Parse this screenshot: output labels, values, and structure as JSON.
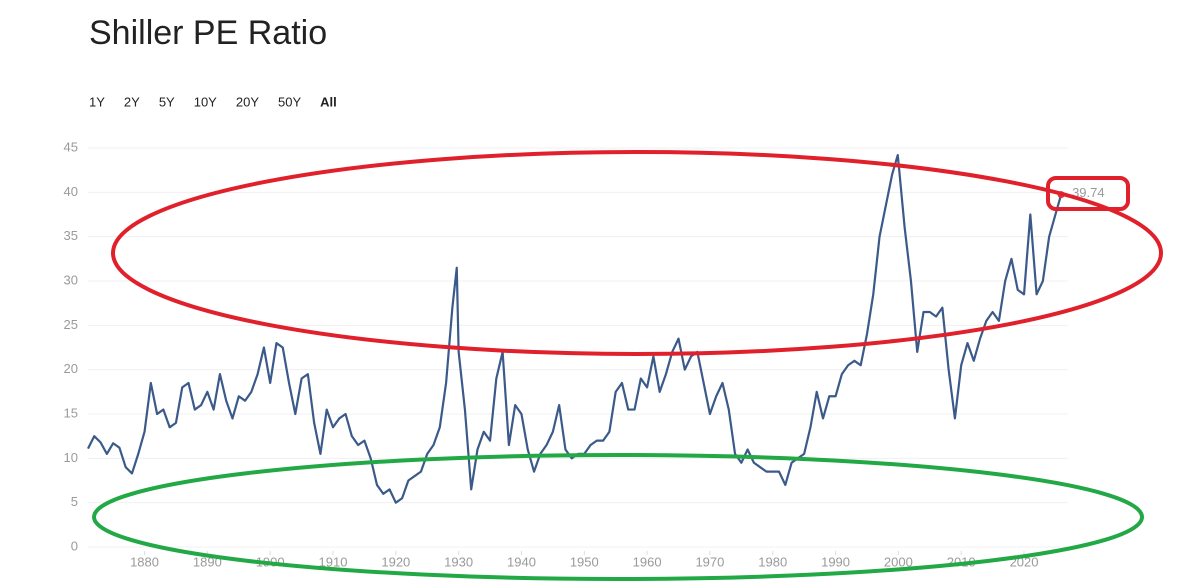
{
  "chart_data": {
    "type": "line",
    "title": "Shiller PE Ratio",
    "range_options": [
      "1Y",
      "2Y",
      "5Y",
      "10Y",
      "20Y",
      "50Y",
      "All"
    ],
    "x": [
      1871,
      1872,
      1873,
      1874,
      1875,
      1876,
      1877,
      1878,
      1879,
      1880,
      1881,
      1882,
      1883,
      1884,
      1885,
      1886,
      1887,
      1888,
      1889,
      1890,
      1891,
      1892,
      1893,
      1894,
      1895,
      1896,
      1897,
      1898,
      1899,
      1900,
      1901,
      1902,
      1903,
      1904,
      1905,
      1906,
      1907,
      1908,
      1909,
      1910,
      1911,
      1912,
      1913,
      1914,
      1915,
      1916,
      1917,
      1918,
      1919,
      1920,
      1921,
      1922,
      1923,
      1924,
      1925,
      1926,
      1927,
      1928,
      1929,
      1929.7,
      1930,
      1931,
      1932,
      1933,
      1934,
      1935,
      1936,
      1937,
      1938,
      1939,
      1940,
      1941,
      1942,
      1943,
      1944,
      1945,
      1946,
      1947,
      1948,
      1949,
      1950,
      1951,
      1952,
      1953,
      1954,
      1955,
      1956,
      1957,
      1958,
      1959,
      1960,
      1961,
      1962,
      1963,
      1964,
      1965,
      1966,
      1967,
      1968,
      1969,
      1970,
      1971,
      1972,
      1973,
      1974,
      1975,
      1976,
      1977,
      1978,
      1979,
      1980,
      1981,
      1982,
      1983,
      1984,
      1985,
      1986,
      1987,
      1988,
      1989,
      1990,
      1991,
      1992,
      1993,
      1994,
      1995,
      1996,
      1997,
      1998,
      1999,
      1999.9,
      2000,
      2001,
      2002,
      2003,
      2004,
      2005,
      2006,
      2007,
      2008,
      2009,
      2010,
      2011,
      2012,
      2013,
      2014,
      2015,
      2016,
      2017,
      2018,
      2019,
      2020,
      2021,
      2022,
      2023,
      2024,
      2025,
      2025.9
    ],
    "series": [
      {
        "name": "Shiller PE Ratio",
        "color": "#3b5a8a",
        "values": [
          11.1,
          12.5,
          11.8,
          10.5,
          11.7,
          11.2,
          9.0,
          8.3,
          10.5,
          13.0,
          18.5,
          15.0,
          15.5,
          13.5,
          14.0,
          18.0,
          18.5,
          15.5,
          16.0,
          17.5,
          15.5,
          19.5,
          16.5,
          14.5,
          17.0,
          16.5,
          17.5,
          19.5,
          22.5,
          18.5,
          23.0,
          22.5,
          18.5,
          15.0,
          19.0,
          19.5,
          14.0,
          10.5,
          15.5,
          13.5,
          14.5,
          15.0,
          12.5,
          11.5,
          12.0,
          10.0,
          7.0,
          6.0,
          6.5,
          5.0,
          5.5,
          7.5,
          8.0,
          8.5,
          10.5,
          11.5,
          13.5,
          18.5,
          27.0,
          31.5,
          22.0,
          15.5,
          6.5,
          11.0,
          13.0,
          12.0,
          19.0,
          22.0,
          11.5,
          16.0,
          15.0,
          11.0,
          8.5,
          10.5,
          11.5,
          13.0,
          16.0,
          11.0,
          10.0,
          10.5,
          10.5,
          11.5,
          12.0,
          12.0,
          13.0,
          17.5,
          18.5,
          15.5,
          15.5,
          19.0,
          18.0,
          21.5,
          17.5,
          19.5,
          22.0,
          23.5,
          20.0,
          21.5,
          22.0,
          18.5,
          15.0,
          17.0,
          18.5,
          15.5,
          10.5,
          9.5,
          11.0,
          9.5,
          9.0,
          8.5,
          8.5,
          8.5,
          7.0,
          9.5,
          10.0,
          10.5,
          13.5,
          17.5,
          14.5,
          17.0,
          17.0,
          19.5,
          20.5,
          21.0,
          20.5,
          24.0,
          28.5,
          35.0,
          38.5,
          42.0,
          44.2,
          43.5,
          36.0,
          30.0,
          22.0,
          26.5,
          26.5,
          26.0,
          27.0,
          20.0,
          14.5,
          20.5,
          23.0,
          21.0,
          23.5,
          25.5,
          26.5,
          25.5,
          30.0,
          32.5,
          29.0,
          28.5,
          37.5,
          28.5,
          30.0,
          35.0,
          37.5,
          39.74
        ]
      }
    ],
    "last_point_color": "#d9363e",
    "xlim": [
      1871,
      2027
    ],
    "xticks": [
      1880,
      1890,
      1900,
      1910,
      1920,
      1930,
      1940,
      1950,
      1960,
      1970,
      1980,
      1990,
      2000,
      2010,
      2020
    ],
    "ylim": [
      0,
      45
    ],
    "yticks": [
      0,
      5,
      10,
      15,
      20,
      25,
      30,
      35,
      40,
      45
    ],
    "grid": true
  }
}
